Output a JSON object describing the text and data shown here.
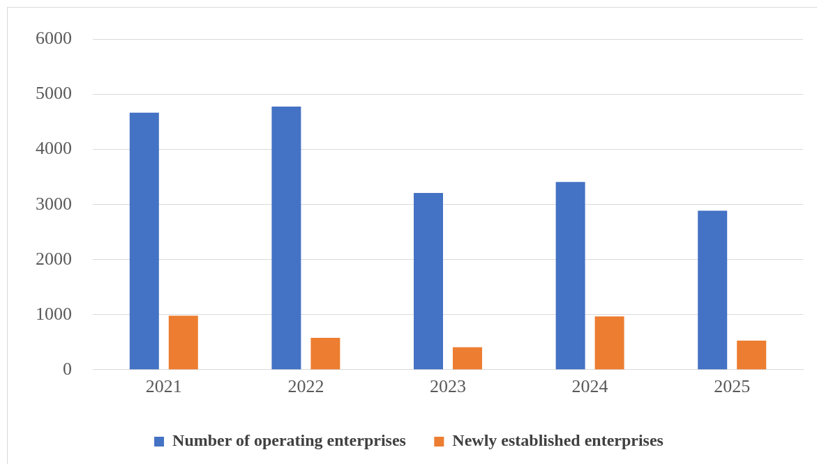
{
  "chart_data": {
    "type": "bar",
    "categories": [
      "2021",
      "2022",
      "2023",
      "2024",
      "2025"
    ],
    "series": [
      {
        "name": "Number of operating enterprises",
        "color": "#4472c4",
        "values": [
          4670,
          4780,
          3210,
          3410,
          2890
        ]
      },
      {
        "name": "Newly established enterprises",
        "color": "#ed7d31",
        "values": [
          980,
          580,
          410,
          970,
          530
        ]
      }
    ],
    "ylim": [
      0,
      6000
    ],
    "yticks": [
      0,
      1000,
      2000,
      3000,
      4000,
      5000,
      6000
    ],
    "grid": "y",
    "legend": "bottom"
  }
}
